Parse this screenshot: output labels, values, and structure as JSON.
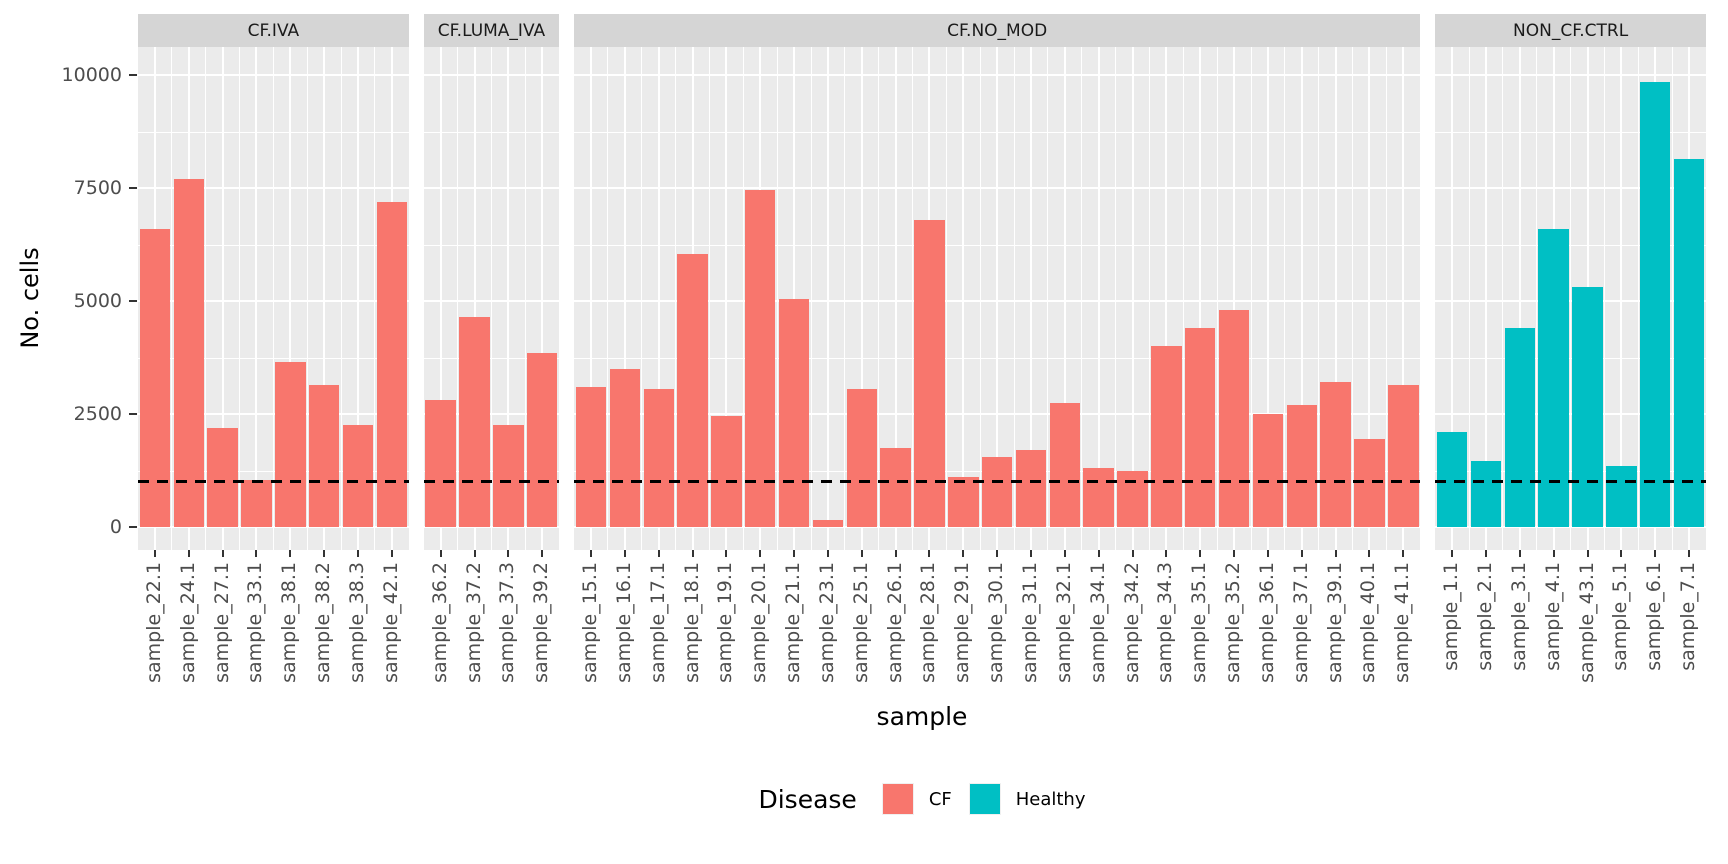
{
  "chart_data": {
    "type": "bar",
    "title": "",
    "ylabel": "No. cells",
    "xlabel": "sample",
    "ylim": [
      0,
      10600
    ],
    "yticks": [
      0,
      2500,
      5000,
      7500,
      10000
    ],
    "minor_gridlines": [
      1250,
      3750,
      6250,
      8750
    ],
    "grid": "on",
    "hline": {
      "value": 1000,
      "style": "dashed",
      "color": "#000000"
    },
    "colors": {
      "CF": "#F8766D",
      "Healthy": "#00BFC4"
    },
    "panel_bg": "#EBEBEB",
    "strip_bg": "#D5D5D5",
    "legend": {
      "title": "Disease",
      "position": "bottom",
      "items": [
        {
          "label": "CF",
          "color": "#F8766D"
        },
        {
          "label": "Healthy",
          "color": "#00BFC4"
        }
      ]
    },
    "facets": [
      {
        "label": "CF.IVA",
        "disease": "CF",
        "samples": [
          "sample_22.1",
          "sample_24.1",
          "sample_27.1",
          "sample_33.1",
          "sample_38.1",
          "sample_38.2",
          "sample_38.3",
          "sample_42.1"
        ],
        "values": [
          6600,
          7700,
          2200,
          1050,
          3650,
          3150,
          2250,
          7200
        ]
      },
      {
        "label": "CF.LUMA_IVA",
        "disease": "CF",
        "samples": [
          "sample_36.2",
          "sample_37.2",
          "sample_37.3",
          "sample_39.2"
        ],
        "values": [
          2800,
          4650,
          2250,
          3850
        ]
      },
      {
        "label": "CF.NO_MOD",
        "disease": "CF",
        "samples": [
          "sample_15.1",
          "sample_16.1",
          "sample_17.1",
          "sample_18.1",
          "sample_19.1",
          "sample_20.1",
          "sample_21.1",
          "sample_23.1",
          "sample_25.1",
          "sample_26.1",
          "sample_28.1",
          "sample_29.1",
          "sample_30.1",
          "sample_31.1",
          "sample_32.1",
          "sample_34.1",
          "sample_34.2",
          "sample_34.3",
          "sample_35.1",
          "sample_35.2",
          "sample_36.1",
          "sample_37.1",
          "sample_39.1",
          "sample_40.1",
          "sample_41.1"
        ],
        "values": [
          3100,
          3500,
          3050,
          6050,
          2450,
          7450,
          5050,
          150,
          3050,
          1750,
          6800,
          1100,
          1550,
          1700,
          2750,
          1300,
          1250,
          4000,
          4400,
          4800,
          2500,
          2700,
          3200,
          1950,
          3150
        ]
      },
      {
        "label": "NON_CF.CTRL",
        "disease": "Healthy",
        "samples": [
          "sample_1.1",
          "sample_2.1",
          "sample_3.1",
          "sample_4.1",
          "sample_43.1",
          "sample_5.1",
          "sample_6.1",
          "sample_7.1"
        ],
        "values": [
          2100,
          1450,
          4400,
          6600,
          5300,
          1350,
          9850,
          8150
        ]
      }
    ]
  }
}
